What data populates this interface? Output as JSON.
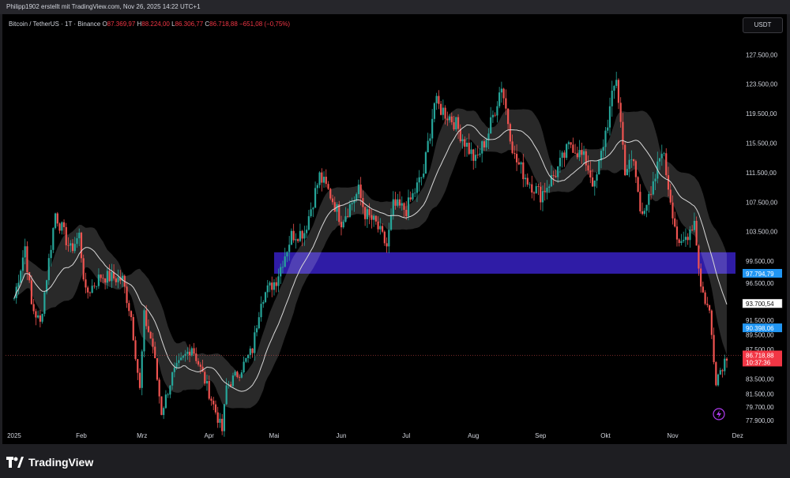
{
  "header": {
    "credit": "Philipp1902 erstellt mit TradingView.com, Nov 26, 2025 14:22 UTC+1"
  },
  "symbol": {
    "name": "Bitcoin / TetherUS · 1T · Binance",
    "o_label": "O",
    "o": "87.369,97",
    "h_label": "H",
    "h": "88.224,00",
    "l_label": "L",
    "l": "86.306,77",
    "c_label": "C",
    "c": "86.718,88",
    "change": "−651,08 (−0,75%)"
  },
  "currency_button": "USDT",
  "footer": {
    "brand": "TradingView"
  },
  "colors": {
    "up": "#26a69a",
    "down": "#ef5350",
    "zone": "#2f1ca6",
    "ema": "#d8d8d8",
    "band": "#ffffff",
    "label_blue": "#2196f3",
    "label_red": "#f23645",
    "label_white": "#ffffff"
  },
  "chart_data": {
    "type": "candlestick",
    "y_scale": "linear",
    "ylim": [
      76500,
      130000
    ],
    "x_range": [
      "2024-12-28",
      "2025-11-30"
    ],
    "price_axis_ticks": [
      "127.500,00",
      "123.500,00",
      "119.500,00",
      "115.500,00",
      "111.500,00",
      "107.500,00",
      "103.500,00",
      "99.500,00",
      "96.500,00",
      "91.500,00",
      "89.500,00",
      "87.500,00",
      "83.500,00",
      "81.500,00",
      "79.700,00",
      "77.900,00"
    ],
    "time_axis_labels": [
      {
        "label": "2025",
        "date": "2025-01-01"
      },
      {
        "label": "Feb",
        "date": "2025-02-01"
      },
      {
        "label": "Mrz",
        "date": "2025-03-01"
      },
      {
        "label": "Apr",
        "date": "2025-04-01"
      },
      {
        "label": "Mai",
        "date": "2025-05-01"
      },
      {
        "label": "Jun",
        "date": "2025-06-01"
      },
      {
        "label": "Jul",
        "date": "2025-07-01"
      },
      {
        "label": "Aug",
        "date": "2025-08-01"
      },
      {
        "label": "Sep",
        "date": "2025-09-01"
      },
      {
        "label": "Okt",
        "date": "2025-10-01"
      },
      {
        "label": "Nov",
        "date": "2025-11-01"
      },
      {
        "label": "Dez",
        "date": "2025-12-01"
      }
    ],
    "price_path": [
      [
        "2025-01-01",
        94500
      ],
      [
        "2025-01-06",
        101500
      ],
      [
        "2025-01-09",
        93500
      ],
      [
        "2025-01-13",
        91000
      ],
      [
        "2025-01-20",
        106000
      ],
      [
        "2025-01-27",
        101000
      ],
      [
        "2025-01-31",
        103000
      ],
      [
        "2025-02-03",
        95000
      ],
      [
        "2025-02-10",
        97500
      ],
      [
        "2025-02-20",
        97000
      ],
      [
        "2025-02-24",
        92000
      ],
      [
        "2025-02-28",
        82000
      ],
      [
        "2025-03-02",
        92000
      ],
      [
        "2025-03-06",
        88000
      ],
      [
        "2025-03-10",
        79000
      ],
      [
        "2025-03-15",
        84000
      ],
      [
        "2025-03-24",
        88000
      ],
      [
        "2025-03-31",
        82500
      ],
      [
        "2025-04-07",
        76500
      ],
      [
        "2025-04-09",
        82500
      ],
      [
        "2025-04-15",
        84500
      ],
      [
        "2025-04-21",
        87500
      ],
      [
        "2025-04-25",
        94500
      ],
      [
        "2025-05-02",
        97000
      ],
      [
        "2025-05-09",
        103000
      ],
      [
        "2025-05-15",
        103500
      ],
      [
        "2025-05-22",
        111000
      ],
      [
        "2025-05-27",
        108500
      ],
      [
        "2025-06-01",
        105000
      ],
      [
        "2025-06-09",
        109000
      ],
      [
        "2025-06-12",
        106000
      ],
      [
        "2025-06-17",
        104500
      ],
      [
        "2025-06-22",
        101500
      ],
      [
        "2025-06-25",
        107000
      ],
      [
        "2025-07-01",
        106500
      ],
      [
        "2025-07-09",
        111500
      ],
      [
        "2025-07-14",
        121000
      ],
      [
        "2025-07-23",
        118500
      ],
      [
        "2025-08-02",
        113000
      ],
      [
        "2025-08-08",
        117000
      ],
      [
        "2025-08-14",
        123500
      ],
      [
        "2025-08-20",
        113500
      ],
      [
        "2025-08-26",
        110500
      ],
      [
        "2025-09-01",
        108500
      ],
      [
        "2025-09-08",
        111500
      ],
      [
        "2025-09-15",
        115500
      ],
      [
        "2025-09-22",
        113000
      ],
      [
        "2025-09-26",
        109500
      ],
      [
        "2025-10-01",
        117000
      ],
      [
        "2025-10-06",
        124500
      ],
      [
        "2025-10-10",
        112000
      ],
      [
        "2025-10-14",
        113000
      ],
      [
        "2025-10-17",
        106500
      ],
      [
        "2025-10-22",
        108000
      ],
      [
        "2025-10-27",
        115000
      ],
      [
        "2025-11-04",
        101000
      ],
      [
        "2025-11-11",
        105000
      ],
      [
        "2025-11-14",
        96000
      ],
      [
        "2025-11-18",
        92500
      ],
      [
        "2025-11-21",
        83500
      ],
      [
        "2025-11-26",
        86700
      ]
    ],
    "moving_average": "present",
    "moving_average_band": "present",
    "zone": {
      "from": 97794.79,
      "to": 100700,
      "x_start": "2025-05-01",
      "x_end": "2025-11-30"
    },
    "dotted_price_line": 86718.88,
    "price_labels": [
      {
        "text": "97.794,79",
        "price": 97794.79,
        "style": "blue"
      },
      {
        "text": "93.700,54",
        "price": 93700.54,
        "style": "white"
      },
      {
        "text": "90.398,06",
        "price": 90398.06,
        "style": "blue"
      },
      {
        "text": "86.718,88",
        "price": 86718.88,
        "style": "red",
        "sub": "10:37:36"
      }
    ]
  }
}
